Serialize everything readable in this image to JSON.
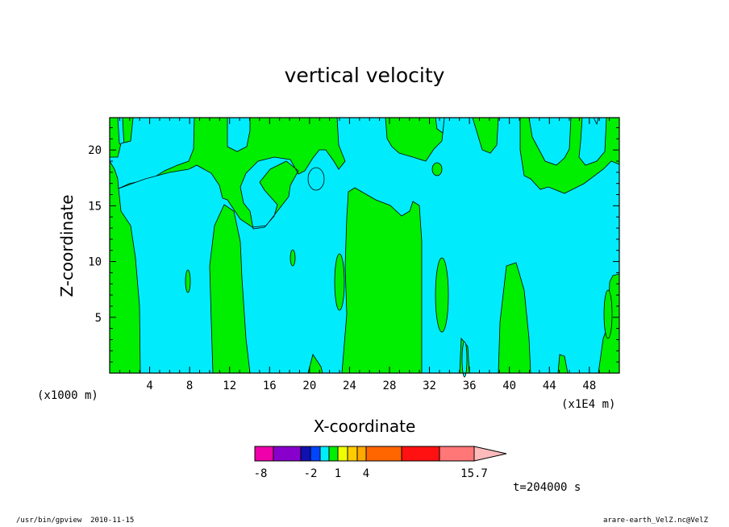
{
  "chart_data": {
    "type": "heatmap",
    "title": "vertical velocity",
    "xlabel": "X-coordinate",
    "ylabel": "Z-coordinate",
    "x_unit": "(x1E4 m)",
    "y_unit": "(x1000 m)",
    "xlim": [
      0,
      51
    ],
    "ylim": [
      0,
      22.9
    ],
    "x_ticks": [
      4,
      8,
      12,
      16,
      20,
      24,
      28,
      32,
      36,
      40,
      44,
      48
    ],
    "y_ticks": [
      5,
      10,
      15,
      20
    ],
    "regions": [
      {
        "level": "negative (-1 to 0)",
        "color": "#00ecfc"
      },
      {
        "level": "positive (0 to 1)",
        "color": "#00ee00"
      }
    ],
    "colorbar": {
      "colors": [
        "#ee00aa",
        "#8800cc",
        "#1010b0",
        "#0044ff",
        "#00ecfc",
        "#00ee00",
        "#eeff00",
        "#ffcc00",
        "#ffaa00",
        "#ff6600",
        "#ff1111",
        "#ff7777",
        "#ffbbbb"
      ],
      "labels": [
        "-8",
        "-2",
        "1",
        "4",
        "15.7"
      ],
      "label_positions": [
        -8,
        -2,
        1,
        4,
        15.7
      ]
    },
    "time_label": "t=204000 s"
  },
  "footer": {
    "left": "/usr/bin/gpview  2010-11-15",
    "right": "arare-earth_VelZ.nc@VelZ"
  }
}
